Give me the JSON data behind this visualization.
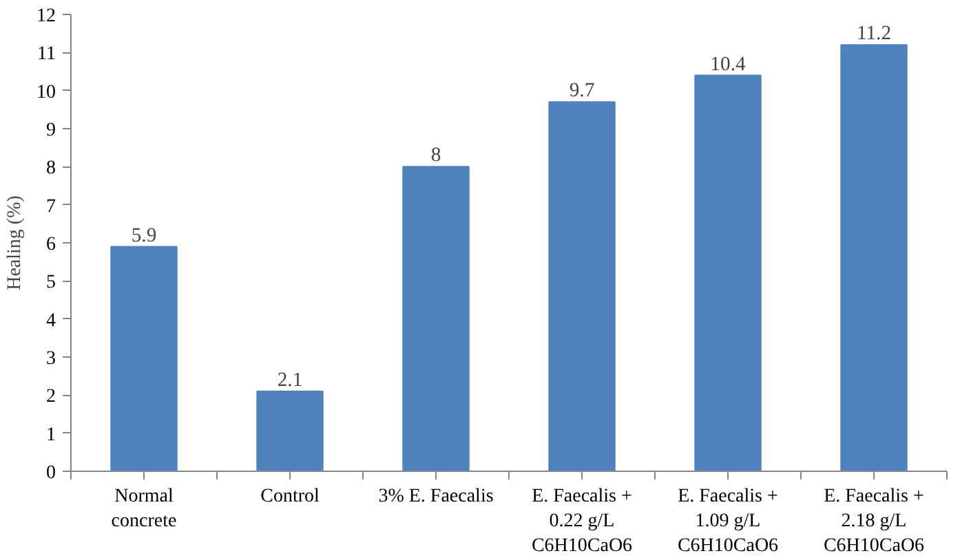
{
  "chart_data": {
    "type": "bar",
    "ylabel": "Healing (%)",
    "categories": [
      "Normal\nconcrete",
      "Control",
      "3% E. Faecalis",
      "E. Faecalis +\n0.22 g/L\nC6H10CaO6",
      "E. Faecalis +\n1.09 g/L\nC6H10CaO6",
      "E. Faecalis +\n2.18 g/L\nC6H10CaO6"
    ],
    "values": [
      5.9,
      2.1,
      8,
      9.7,
      10.4,
      11.2
    ],
    "color": "#4f81bd",
    "ylim": [
      0,
      12
    ],
    "yticks": [
      0,
      1,
      2,
      3,
      4,
      5,
      6,
      7,
      8,
      9,
      10,
      11,
      12
    ],
    "grid": false,
    "data_labels": true
  }
}
